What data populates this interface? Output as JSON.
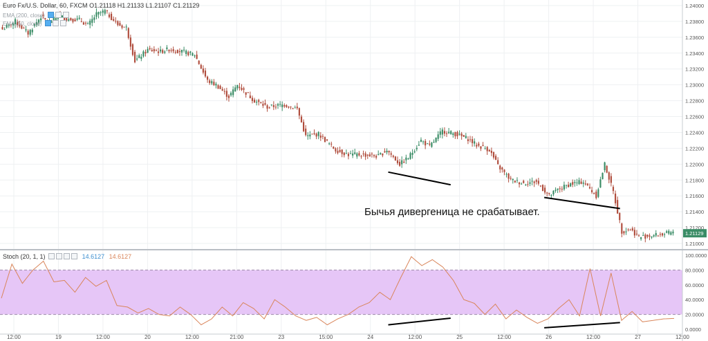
{
  "price_pane": {
    "symbol_label": "Euro Fx/U.S. Dollar, 60, FXCM",
    "ohlc": {
      "o": "O1.21118",
      "h": "H1.21133",
      "l": "L1.21107",
      "c": "C1.21129"
    },
    "ema_labels": [
      "EMA (200, close)",
      "EMA (50, close)"
    ],
    "last_price": "1.21129"
  },
  "stoch_pane": {
    "label": "Stoch (20, 1, 1)",
    "k_value": "14.6127",
    "d_value": "14.6127",
    "band_color": "#e6c6f7"
  },
  "annotation_text": "Бычья дивергеница не срабатывает.",
  "colors": {
    "up": "#3a8c66",
    "down": "#b04d3d",
    "stoch_line": "#d9855a",
    "divergence_line": "#000000"
  },
  "chart_data": [
    {
      "type": "candlestick",
      "title": "Euro Fx/U.S. Dollar, 60, FXCM",
      "ylim": [
        1.21,
        1.24
      ],
      "y_ticks": [
        "1.24000",
        "1.23800",
        "1.23600",
        "1.23400",
        "1.23200",
        "1.23000",
        "1.22800",
        "1.22600",
        "1.22400",
        "1.22200",
        "1.22000",
        "1.21800",
        "1.21600",
        "1.21400",
        "1.21200",
        "1.21000"
      ],
      "x_ticks": [
        "12:00",
        "19",
        "12:00",
        "20",
        "12:00",
        "21:00",
        "23",
        "15:00",
        "24",
        "12:00",
        "25",
        "12:00",
        "26",
        "12:00",
        "27",
        "12:00"
      ],
      "bar_count": 200,
      "anchors": [
        [
          0,
          1.237
        ],
        [
          6,
          1.238
        ],
        [
          12,
          1.2365
        ],
        [
          18,
          1.2386
        ],
        [
          22,
          1.2378
        ],
        [
          26,
          1.2388
        ],
        [
          30,
          1.2383
        ],
        [
          36,
          1.2382
        ],
        [
          40,
          1.2375
        ],
        [
          44,
          1.2389
        ],
        [
          48,
          1.2393
        ],
        [
          54,
          1.2376
        ],
        [
          58,
          1.2372
        ],
        [
          62,
          1.233
        ],
        [
          68,
          1.2344
        ],
        [
          74,
          1.2342
        ],
        [
          78,
          1.2345
        ],
        [
          84,
          1.2342
        ],
        [
          90,
          1.2338
        ],
        [
          96,
          1.2305
        ],
        [
          100,
          1.23
        ],
        [
          106,
          1.2285
        ],
        [
          110,
          1.23
        ],
        [
          118,
          1.228
        ],
        [
          124,
          1.2272
        ],
        [
          132,
          1.2275
        ],
        [
          138,
          1.227
        ],
        [
          142,
          1.2235
        ],
        [
          148,
          1.2238
        ],
        [
          152,
          1.2228
        ],
        [
          156,
          1.2218
        ],
        [
          162,
          1.2212
        ],
        [
          168,
          1.2212
        ],
        [
          176,
          1.221
        ],
        [
          180,
          1.2218
        ],
        [
          186,
          1.22
        ],
        [
          190,
          1.2208
        ],
        [
          196,
          1.223
        ],
        [
          200,
          1.2222
        ]
      ],
      "anchors2": [
        [
          0,
          1.2222
        ],
        [
          6,
          1.2242
        ],
        [
          12,
          1.2238
        ],
        [
          18,
          1.2232
        ],
        [
          22,
          1.2224
        ],
        [
          28,
          1.2218
        ],
        [
          32,
          1.2198
        ],
        [
          38,
          1.218
        ],
        [
          44,
          1.2176
        ],
        [
          50,
          1.2178
        ],
        [
          56,
          1.216
        ],
        [
          60,
          1.2168
        ],
        [
          66,
          1.2175
        ],
        [
          72,
          1.2178
        ],
        [
          78,
          1.216
        ],
        [
          82,
          1.22
        ],
        [
          86,
          1.2165
        ],
        [
          90,
          1.2115
        ],
        [
          94,
          1.2118
        ],
        [
          98,
          1.2108
        ],
        [
          104,
          1.211
        ],
        [
          110,
          1.2112
        ],
        [
          114,
          1.2114
        ]
      ],
      "divergence_lines": [
        {
          "from": [
            24.2,
            1.219
          ],
          "to": [
            24.9,
            1.2174
          ]
        },
        {
          "from": [
            25.95,
            1.2158
          ],
          "to": [
            26.8,
            1.2144
          ]
        }
      ]
    },
    {
      "type": "line",
      "title": "Stoch (20, 1, 1)",
      "ylim": [
        0,
        100
      ],
      "y_ticks": [
        "100.0000",
        "80.0000",
        "60.0000",
        "40.0000",
        "20.0000",
        "0.0000"
      ],
      "overbought": 80,
      "oversold": 20,
      "values": [
        42,
        55,
        70,
        85,
        75,
        60,
        55,
        70,
        62,
        45,
        52,
        68,
        78,
        65,
        72,
        90,
        80,
        62,
        68,
        78,
        72,
        55,
        62,
        70,
        68,
        60,
        55,
        48,
        58,
        45,
        42,
        38,
        65,
        68,
        60,
        55,
        48,
        52,
        40,
        32,
        45,
        30,
        20,
        22,
        28,
        30,
        20,
        18,
        25,
        22,
        18,
        20,
        15,
        12,
        18,
        20,
        22,
        25,
        18,
        15,
        5,
        10,
        15,
        20,
        18,
        22,
        15,
        12,
        30,
        40,
        35,
        28,
        25,
        20,
        15,
        12,
        18,
        30,
        35,
        32,
        28,
        25,
        22,
        20,
        18,
        15,
        10,
        8,
        12,
        20,
        18,
        10,
        5,
        8,
        12,
        15,
        5,
        8,
        10,
        12,
        15,
        18,
        20,
        25,
        28,
        30,
        40,
        45,
        50,
        40,
        35,
        45,
        60,
        75,
        95,
        98,
        80,
        85,
        95,
        90,
        92,
        95,
        85,
        80,
        75,
        70,
        55,
        40,
        35,
        30,
        35,
        25,
        20,
        15,
        18,
        10,
        15,
        20,
        18,
        15,
        10,
        8,
        12,
        15,
        20,
        25,
        30,
        35,
        40,
        30,
        35,
        80,
        20,
        60,
        15,
        10,
        15,
        20,
        12,
        8,
        10,
        12,
        15,
        14.6
      ],
      "stoch_anchors": [
        [
          0,
          42
        ],
        [
          4,
          88
        ],
        [
          8,
          62
        ],
        [
          12,
          80
        ],
        [
          16,
          92
        ],
        [
          20,
          64
        ],
        [
          24,
          66
        ],
        [
          28,
          50
        ],
        [
          32,
          70
        ],
        [
          36,
          58
        ],
        [
          40,
          66
        ],
        [
          44,
          32
        ],
        [
          48,
          30
        ],
        [
          52,
          22
        ],
        [
          56,
          28
        ],
        [
          60,
          20
        ],
        [
          64,
          18
        ],
        [
          68,
          30
        ],
        [
          72,
          20
        ],
        [
          76,
          6
        ],
        [
          80,
          14
        ],
        [
          84,
          30
        ],
        [
          88,
          18
        ],
        [
          92,
          36
        ],
        [
          96,
          28
        ],
        [
          100,
          14
        ],
        [
          104,
          40
        ],
        [
          108,
          30
        ],
        [
          112,
          18
        ],
        [
          116,
          12
        ],
        [
          120,
          16
        ],
        [
          124,
          6
        ],
        [
          128,
          14
        ],
        [
          132,
          20
        ],
        [
          136,
          30
        ],
        [
          140,
          36
        ],
        [
          144,
          50
        ],
        [
          148,
          40
        ],
        [
          152,
          70
        ],
        [
          156,
          98
        ],
        [
          160,
          86
        ],
        [
          164,
          94
        ],
        [
          168,
          84
        ],
        [
          172,
          66
        ],
        [
          176,
          40
        ],
        [
          180,
          35
        ],
        [
          184,
          20
        ],
        [
          188,
          34
        ],
        [
          192,
          14
        ],
        [
          196,
          26
        ],
        [
          200,
          16
        ],
        [
          204,
          8
        ],
        [
          208,
          14
        ],
        [
          212,
          28
        ],
        [
          216,
          40
        ],
        [
          220,
          18
        ],
        [
          224,
          82
        ],
        [
          228,
          18
        ],
        [
          232,
          76
        ],
        [
          236,
          12
        ],
        [
          240,
          24
        ],
        [
          244,
          10
        ],
        [
          248,
          12
        ],
        [
          252,
          14
        ],
        [
          256,
          14.6
        ]
      ],
      "divergence_line": {
        "from": [
          24.2,
          6
        ],
        "to": [
          24.9,
          15
        ]
      },
      "divergence_line2": {
        "from": [
          25.95,
          2
        ],
        "to": [
          26.8,
          9
        ]
      }
    }
  ]
}
